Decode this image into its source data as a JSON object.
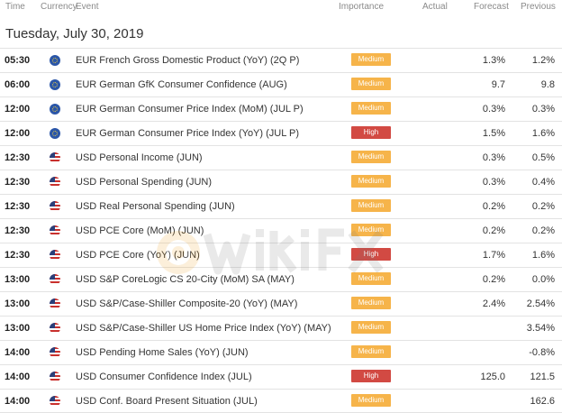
{
  "header": {
    "time": "Time",
    "currency": "Currency",
    "event": "Event",
    "importance": "Importance",
    "actual": "Actual",
    "forecast": "Forecast",
    "previous": "Previous"
  },
  "date_title": "Tuesday, July 30, 2019",
  "colors": {
    "medium": "#f6b44a",
    "high": "#d24a43"
  },
  "rows": [
    {
      "time": "05:30",
      "currency": "eur",
      "event": "EUR French Gross Domestic Product (YoY) (2Q P)",
      "importance": "Medium",
      "actual": "",
      "forecast": "1.3%",
      "previous": "1.2%"
    },
    {
      "time": "06:00",
      "currency": "eur",
      "event": "EUR German GfK Consumer Confidence (AUG)",
      "importance": "Medium",
      "actual": "",
      "forecast": "9.7",
      "previous": "9.8"
    },
    {
      "time": "12:00",
      "currency": "eur",
      "event": "EUR German Consumer Price Index (MoM) (JUL P)",
      "importance": "Medium",
      "actual": "",
      "forecast": "0.3%",
      "previous": "0.3%"
    },
    {
      "time": "12:00",
      "currency": "eur",
      "event": "EUR German Consumer Price Index (YoY) (JUL P)",
      "importance": "High",
      "actual": "",
      "forecast": "1.5%",
      "previous": "1.6%"
    },
    {
      "time": "12:30",
      "currency": "usd",
      "event": "USD Personal Income (JUN)",
      "importance": "Medium",
      "actual": "",
      "forecast": "0.3%",
      "previous": "0.5%"
    },
    {
      "time": "12:30",
      "currency": "usd",
      "event": "USD Personal Spending (JUN)",
      "importance": "Medium",
      "actual": "",
      "forecast": "0.3%",
      "previous": "0.4%"
    },
    {
      "time": "12:30",
      "currency": "usd",
      "event": "USD Real Personal Spending (JUN)",
      "importance": "Medium",
      "actual": "",
      "forecast": "0.2%",
      "previous": "0.2%"
    },
    {
      "time": "12:30",
      "currency": "usd",
      "event": "USD PCE Core (MoM) (JUN)",
      "importance": "Medium",
      "actual": "",
      "forecast": "0.2%",
      "previous": "0.2%"
    },
    {
      "time": "12:30",
      "currency": "usd",
      "event": "USD PCE Core (YoY) (JUN)",
      "importance": "High",
      "actual": "",
      "forecast": "1.7%",
      "previous": "1.6%"
    },
    {
      "time": "13:00",
      "currency": "usd",
      "event": "USD S&P CoreLogic CS 20-City (MoM) SA (MAY)",
      "importance": "Medium",
      "actual": "",
      "forecast": "0.2%",
      "previous": "0.0%"
    },
    {
      "time": "13:00",
      "currency": "usd",
      "event": "USD S&P/Case-Shiller Composite-20 (YoY) (MAY)",
      "importance": "Medium",
      "actual": "",
      "forecast": "2.4%",
      "previous": "2.54%"
    },
    {
      "time": "13:00",
      "currency": "usd",
      "event": "USD S&P/Case-Shiller US Home Price Index (YoY) (MAY)",
      "importance": "Medium",
      "actual": "",
      "forecast": "",
      "previous": "3.54%"
    },
    {
      "time": "14:00",
      "currency": "usd",
      "event": "USD Pending Home Sales (YoY) (JUN)",
      "importance": "Medium",
      "actual": "",
      "forecast": "",
      "previous": "-0.8%"
    },
    {
      "time": "14:00",
      "currency": "usd",
      "event": "USD Consumer Confidence Index (JUL)",
      "importance": "High",
      "actual": "",
      "forecast": "125.0",
      "previous": "121.5"
    },
    {
      "time": "14:00",
      "currency": "usd",
      "event": "USD Conf. Board Present Situation (JUL)",
      "importance": "Medium",
      "actual": "",
      "forecast": "",
      "previous": "162.6"
    }
  ]
}
